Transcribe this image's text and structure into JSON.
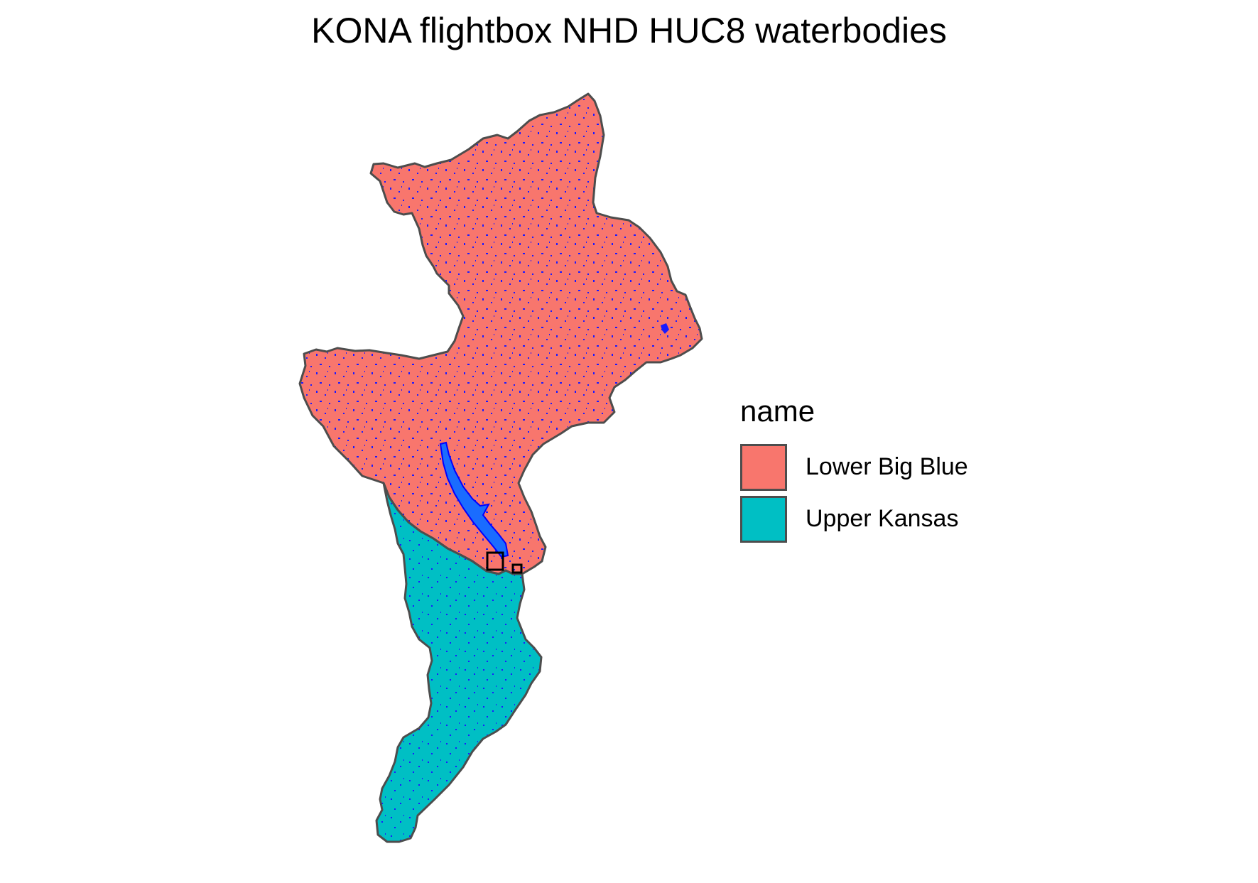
{
  "title": "KONA flightbox NHD HUC8 waterbodies",
  "legend": {
    "title": "name",
    "items": [
      {
        "label": "Lower Big Blue",
        "color": "#F8766D"
      },
      {
        "label": "Upper Kansas",
        "color": "#00BFC4"
      }
    ]
  },
  "colors": {
    "outline": "#4d4d4d",
    "waterbody": "#0000ff",
    "reservoir": "#1a6cff",
    "flightbox": "#000000"
  }
}
